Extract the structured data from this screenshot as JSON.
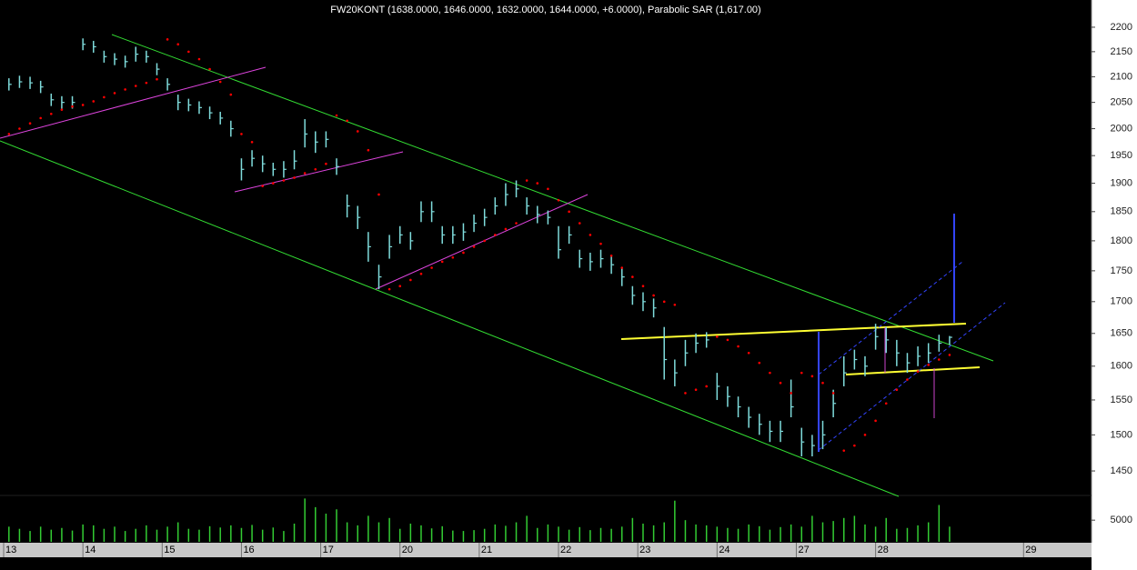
{
  "chart_data": {
    "type": "ohlc",
    "title": "FW20KONT (1638.0000, 1646.0000, 1632.0000, 1644.0000, +6.0000), Parabolic SAR (1,617.00)",
    "x": [
      1,
      3,
      5,
      7,
      9,
      11,
      13,
      15,
      17,
      19,
      21,
      23,
      25,
      27,
      29,
      31,
      33,
      35,
      37,
      39,
      41,
      43,
      45,
      47,
      49,
      51,
      53,
      55,
      57,
      59,
      61,
      63,
      65,
      67,
      69,
      71,
      73,
      75,
      77,
      79,
      81,
      83,
      85,
      87,
      89,
      91,
      93,
      95,
      97,
      99,
      101,
      103,
      105,
      107,
      109,
      111,
      113,
      115,
      117,
      119,
      121,
      123,
      125,
      127,
      129,
      131,
      133,
      135,
      137,
      139,
      141,
      143,
      145,
      147,
      149,
      151,
      153,
      155,
      157,
      159,
      161,
      163,
      165,
      167,
      169,
      171,
      173,
      175,
      177,
      179
    ],
    "xlim": [
      0,
      205
    ],
    "xticks": [
      {
        "value": 0,
        "label": "13"
      },
      {
        "value": 15,
        "label": "14"
      },
      {
        "value": 30,
        "label": "15"
      },
      {
        "value": 45,
        "label": "16"
      },
      {
        "value": 60,
        "label": "17"
      },
      {
        "value": 75,
        "label": "20"
      },
      {
        "value": 90,
        "label": "21"
      },
      {
        "value": 105,
        "label": "22"
      },
      {
        "value": 120,
        "label": "23"
      },
      {
        "value": 135,
        "label": "24"
      },
      {
        "value": 150,
        "label": "27"
      },
      {
        "value": 165,
        "label": "28"
      },
      {
        "value": 193,
        "label": "29"
      }
    ],
    "high": [
      2097,
      2102,
      2100,
      2092,
      2067,
      2062,
      2062,
      2177,
      2172,
      2152,
      2147,
      2142,
      2160,
      2152,
      2127,
      2097,
      2065,
      2057,
      2052,
      2042,
      2032,
      2015,
      1945,
      1960,
      1950,
      1937,
      1940,
      1960,
      2018,
      1995,
      1995,
      1945,
      1880,
      1860,
      1815,
      1760,
      1810,
      1825,
      1815,
      1868,
      1868,
      1825,
      1825,
      1830,
      1845,
      1855,
      1875,
      1900,
      1905,
      1875,
      1860,
      1852,
      1825,
      1825,
      1785,
      1780,
      1785,
      1775,
      1755,
      1725,
      1715,
      1705,
      1660,
      1610,
      1640,
      1650,
      1652,
      1590,
      1570,
      1555,
      1540,
      1530,
      1520,
      1520,
      1580,
      1510,
      1500,
      1520,
      1565,
      1615,
      1625,
      1615,
      1665,
      1660,
      1640,
      1620,
      1630,
      1635,
      1648,
      1646
    ],
    "low": [
      2073,
      2078,
      2076,
      2068,
      2043,
      2038,
      2038,
      2153,
      2148,
      2128,
      2123,
      2118,
      2130,
      2128,
      2103,
      2073,
      2035,
      2033,
      2028,
      2018,
      2008,
      1985,
      1905,
      1930,
      1920,
      1913,
      1910,
      1925,
      1965,
      1955,
      1965,
      1915,
      1840,
      1820,
      1765,
      1720,
      1770,
      1795,
      1785,
      1832,
      1832,
      1795,
      1795,
      1800,
      1815,
      1825,
      1845,
      1860,
      1875,
      1845,
      1830,
      1828,
      1770,
      1795,
      1755,
      1750,
      1755,
      1745,
      1725,
      1695,
      1685,
      1675,
      1580,
      1570,
      1600,
      1620,
      1628,
      1550,
      1540,
      1525,
      1510,
      1500,
      1490,
      1490,
      1525,
      1470,
      1470,
      1480,
      1525,
      1570,
      1595,
      1585,
      1625,
      1620,
      1600,
      1590,
      1600,
      1605,
      1622,
      1632
    ],
    "close": [
      2085,
      2090,
      2088,
      2080,
      2055,
      2050,
      2050,
      2165,
      2160,
      2140,
      2135,
      2130,
      2145,
      2140,
      2115,
      2085,
      2050,
      2045,
      2040,
      2030,
      2020,
      2000,
      1925,
      1945,
      1935,
      1925,
      1925,
      1940,
      1990,
      1975,
      1980,
      1930,
      1860,
      1840,
      1790,
      1740,
      1790,
      1810,
      1800,
      1850,
      1850,
      1810,
      1810,
      1815,
      1830,
      1840,
      1860,
      1880,
      1890,
      1860,
      1845,
      1840,
      1785,
      1810,
      1770,
      1765,
      1770,
      1760,
      1740,
      1710,
      1700,
      1690,
      1610,
      1590,
      1620,
      1635,
      1640,
      1570,
      1555,
      1540,
      1525,
      1515,
      1505,
      1505,
      1540,
      1490,
      1485,
      1500,
      1545,
      1590,
      1610,
      1600,
      1645,
      1640,
      1620,
      1605,
      1615,
      1620,
      1635,
      1644
    ],
    "color": "#7fdcdc",
    "sar": [
      1990,
      2000,
      2010,
      2020,
      2028,
      2036,
      2042,
      2045,
      2052,
      2060,
      2068,
      2075,
      2082,
      2088,
      2095,
      2175,
      2165,
      2150,
      2135,
      2115,
      2090,
      2065,
      1990,
      1975,
      1895,
      1900,
      1905,
      1910,
      1918,
      1925,
      1935,
      2025,
      2015,
      1995,
      1960,
      1880,
      1720,
      1725,
      1735,
      1745,
      1755,
      1765,
      1772,
      1780,
      1790,
      1800,
      1810,
      1820,
      1830,
      1905,
      1900,
      1890,
      1870,
      1850,
      1830,
      1810,
      1795,
      1775,
      1755,
      1740,
      1725,
      1710,
      1700,
      1695,
      1560,
      1565,
      1570,
      1645,
      1640,
      1630,
      1620,
      1605,
      1590,
      1575,
      1560,
      1590,
      1585,
      1575,
      1560,
      1478,
      1485,
      1500,
      1520,
      1545,
      1565,
      1580,
      1592,
      1602,
      1610,
      1617
    ],
    "sar_color": "#ff0000",
    "log_scale": true,
    "ylim": [
      1417,
      2257
    ],
    "yticks": [
      1450,
      1500,
      1550,
      1600,
      1650,
      1700,
      1750,
      1800,
      1850,
      1900,
      1950,
      2000,
      2050,
      2100,
      2150,
      2200
    ],
    "volume": [
      3500,
      3000,
      2500,
      3500,
      2800,
      3200,
      2600,
      4000,
      3800,
      3000,
      3500,
      2500,
      3000,
      3800,
      2800,
      3500,
      4500,
      3000,
      2800,
      3600,
      3300,
      3800,
      3200,
      3900,
      2800,
      3300,
      2500,
      4200,
      10000,
      8000,
      6500,
      7500,
      4500,
      3800,
      6000,
      4500,
      5500,
      3000,
      4200,
      3800,
      3100,
      3600,
      2600,
      2500,
      2700,
      3000,
      4000,
      3700,
      4500,
      6000,
      3200,
      4000,
      3500,
      2800,
      3400,
      2700,
      3200,
      3000,
      3500,
      5500,
      4200,
      3800,
      4500,
      9500,
      5000,
      4000,
      3800,
      3500,
      3200,
      3000,
      4000,
      3600,
      2800,
      3400,
      4000,
      3500,
      6000,
      4500,
      4800,
      5500,
      6000,
      4000,
      3500,
      5500,
      3000,
      3200,
      3800,
      4500,
      8500,
      3500
    ],
    "volume_color": "#33cc33",
    "volume_ylim": [
      0,
      10700
    ],
    "volume_yticks": [
      5000
    ]
  }
}
